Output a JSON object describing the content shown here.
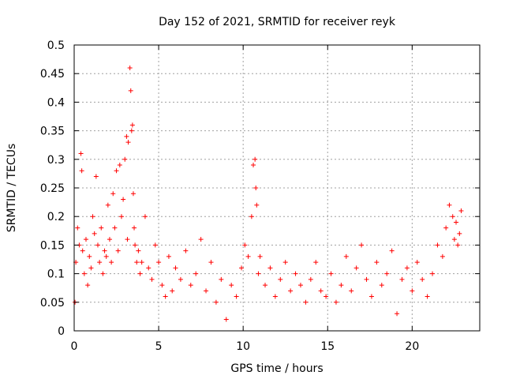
{
  "chart_data": {
    "type": "scatter",
    "title": "Day 152 of 2021, SRMTID for receiver reyk",
    "xlabel": "GPS time / hours",
    "ylabel": "SRMTID / TECUs",
    "xlim": [
      0,
      24
    ],
    "ylim": [
      0,
      0.5
    ],
    "grid": true,
    "marker": "+",
    "series": [
      {
        "name": "SRMTID",
        "color": "#ff0000",
        "x": [
          0.05,
          0.1,
          0.2,
          0.3,
          0.4,
          0.45,
          0.5,
          0.6,
          0.7,
          0.8,
          0.9,
          1.0,
          1.1,
          1.2,
          1.3,
          1.4,
          1.5,
          1.6,
          1.7,
          1.8,
          1.9,
          2.0,
          2.1,
          2.2,
          2.3,
          2.4,
          2.5,
          2.6,
          2.7,
          2.8,
          2.9,
          3.0,
          3.1,
          3.15,
          3.2,
          3.3,
          3.35,
          3.4,
          3.45,
          3.5,
          3.55,
          3.6,
          3.7,
          3.8,
          3.9,
          4.0,
          4.2,
          4.4,
          4.6,
          4.8,
          5.0,
          5.2,
          5.4,
          5.6,
          5.8,
          6.0,
          6.3,
          6.6,
          6.9,
          7.2,
          7.5,
          7.8,
          8.1,
          8.4,
          8.7,
          9.0,
          9.3,
          9.6,
          9.9,
          10.1,
          10.3,
          10.5,
          10.6,
          10.7,
          10.75,
          10.8,
          10.9,
          11.0,
          11.3,
          11.6,
          11.9,
          12.2,
          12.5,
          12.8,
          13.1,
          13.4,
          13.7,
          14.0,
          14.3,
          14.6,
          14.9,
          15.2,
          15.5,
          15.8,
          16.1,
          16.4,
          16.7,
          17.0,
          17.3,
          17.6,
          17.9,
          18.2,
          18.5,
          18.8,
          19.1,
          19.4,
          19.7,
          20.0,
          20.3,
          20.6,
          20.9,
          21.2,
          21.5,
          21.8,
          22.0,
          22.2,
          22.4,
          22.5,
          22.6,
          22.7,
          22.8,
          22.9
        ],
        "y": [
          0.05,
          0.12,
          0.18,
          0.15,
          0.31,
          0.28,
          0.14,
          0.1,
          0.16,
          0.08,
          0.13,
          0.11,
          0.2,
          0.17,
          0.27,
          0.15,
          0.12,
          0.18,
          0.1,
          0.14,
          0.13,
          0.22,
          0.16,
          0.12,
          0.24,
          0.18,
          0.28,
          0.14,
          0.29,
          0.2,
          0.23,
          0.3,
          0.34,
          0.16,
          0.33,
          0.46,
          0.42,
          0.35,
          0.36,
          0.24,
          0.18,
          0.15,
          0.12,
          0.14,
          0.1,
          0.12,
          0.2,
          0.11,
          0.09,
          0.15,
          0.12,
          0.08,
          0.06,
          0.13,
          0.07,
          0.11,
          0.09,
          0.14,
          0.08,
          0.1,
          0.16,
          0.07,
          0.12,
          0.05,
          0.09,
          0.02,
          0.08,
          0.06,
          0.11,
          0.15,
          0.13,
          0.2,
          0.29,
          0.3,
          0.25,
          0.22,
          0.1,
          0.13,
          0.08,
          0.11,
          0.06,
          0.09,
          0.12,
          0.07,
          0.1,
          0.08,
          0.05,
          0.09,
          0.12,
          0.07,
          0.06,
          0.1,
          0.05,
          0.08,
          0.13,
          0.07,
          0.11,
          0.15,
          0.09,
          0.06,
          0.12,
          0.08,
          0.1,
          0.14,
          0.03,
          0.09,
          0.11,
          0.07,
          0.12,
          0.09,
          0.06,
          0.1,
          0.15,
          0.13,
          0.18,
          0.22,
          0.2,
          0.16,
          0.19,
          0.15,
          0.17,
          0.21
        ]
      }
    ]
  },
  "axes": {
    "xticks": [
      0,
      5,
      10,
      15,
      20
    ],
    "yticks": [
      0,
      0.05,
      0.1,
      0.15,
      0.2,
      0.25,
      0.3,
      0.35,
      0.4,
      0.45,
      0.5
    ],
    "ytick_labels": [
      "0",
      "0.05",
      "0.1",
      "0.15",
      "0.2",
      "0.25",
      "0.3",
      "0.35",
      "0.4",
      "0.45",
      "0.5"
    ]
  }
}
